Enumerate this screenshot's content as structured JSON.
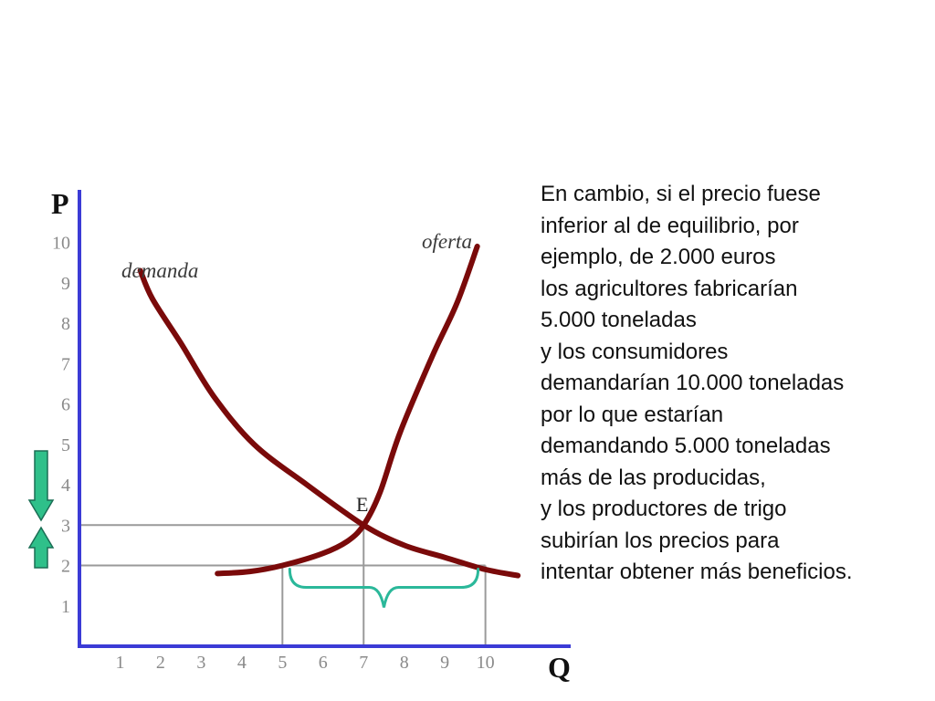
{
  "chart_data": {
    "type": "line",
    "x_axis_letter": "Q",
    "y_axis_letter": "P",
    "x_ticks": [
      "1",
      "2",
      "3",
      "4",
      "5",
      "6",
      "7",
      "8",
      "9",
      "10"
    ],
    "y_ticks": [
      "1",
      "2",
      "3",
      "4",
      "5",
      "6",
      "7",
      "8",
      "9",
      "10"
    ],
    "xlim": [
      0,
      12.1
    ],
    "ylim": [
      0,
      11.3
    ],
    "series": [
      {
        "name": "demanda",
        "color": "#7a0a0a",
        "points": [
          [
            1.5,
            9.3
          ],
          [
            1.8,
            8.6
          ],
          [
            2.5,
            7.5
          ],
          [
            3.3,
            6.2
          ],
          [
            4.3,
            5.0
          ],
          [
            5.6,
            4.0
          ],
          [
            7.0,
            3.0
          ],
          [
            8.0,
            2.5
          ],
          [
            9.0,
            2.2
          ],
          [
            10.0,
            1.9
          ],
          [
            10.8,
            1.75
          ]
        ]
      },
      {
        "name": "oferta",
        "color": "#7a0a0a",
        "points": [
          [
            3.4,
            1.8
          ],
          [
            4.2,
            1.85
          ],
          [
            5.0,
            2.0
          ],
          [
            6.0,
            2.3
          ],
          [
            6.6,
            2.6
          ],
          [
            7.0,
            3.0
          ],
          [
            7.4,
            3.8
          ],
          [
            7.9,
            5.3
          ],
          [
            8.7,
            7.2
          ],
          [
            9.3,
            8.5
          ],
          [
            9.8,
            9.9
          ]
        ]
      }
    ],
    "equilibrium": {
      "label": "E",
      "q": 7,
      "p": 3
    },
    "reference_lines": [
      {
        "from": [
          0,
          3
        ],
        "to": [
          7,
          3
        ]
      },
      {
        "from": [
          7,
          3
        ],
        "to": [
          7,
          0
        ]
      },
      {
        "from": [
          0,
          2
        ],
        "to": [
          10,
          2
        ]
      },
      {
        "from": [
          5,
          2
        ],
        "to": [
          5,
          0
        ]
      },
      {
        "from": [
          10,
          2
        ],
        "to": [
          10,
          0
        ]
      }
    ],
    "excess_demand_range": {
      "from": 5,
      "to": 10,
      "level": 2,
      "color": "#2bb89a"
    },
    "arrows": [
      {
        "direction": "down",
        "color": "#2fc08a"
      },
      {
        "direction": "up",
        "color": "#2fc08a"
      }
    ],
    "axis_color": "#3b3bd6",
    "guide_color": "#9a9a9a"
  },
  "text_panel": {
    "lines": [
      "En cambio, si el precio fuese",
      "inferior al de equilibrio, por",
      "ejemplo, de 2.000 euros",
      "los agricultores fabricarían",
      "5.000 toneladas",
      "y los consumidores",
      "demandarían 10.000 toneladas",
      "por lo que estarían",
      "demandando 5.000 toneladas",
      "más de las producidas,",
      "y los productores de trigo",
      "subirían los precios para",
      "intentar obtener más beneficios."
    ]
  }
}
